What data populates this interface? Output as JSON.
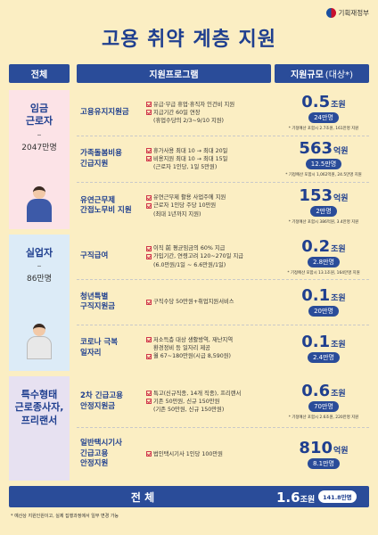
{
  "ministry": "기획재정부",
  "title": "고용 취약 계층 지원",
  "headers": {
    "category": "전체",
    "program": "지원프로그램",
    "scale": "지원규모",
    "scale_sub": "(대상*)"
  },
  "groups": [
    {
      "name_lines": [
        "임금",
        "근로자"
      ],
      "dash": "–",
      "count": "2047만명",
      "rows": [
        {
          "name_lines": [
            "고용유지지원금"
          ],
          "bullets": [
            {
              "check": true,
              "text": "유급·무급 휴업·휴직자 인건비 지원"
            },
            {
              "check": true,
              "text": "지급기간 60일 연장"
            },
            {
              "check": false,
              "text": "(휴업수당의 2/3~9/10 지원)"
            }
          ],
          "amount": "0.5",
          "unit": "조원",
          "target": "24만명",
          "note": "* 기정예산 포함시 2.7조원, 161만명 지원"
        },
        {
          "name_lines": [
            "가족돌봄비용",
            "긴급지원"
          ],
          "bullets": [
            {
              "check": true,
              "text": "휴가사용 최대 10 → 최대 20일"
            },
            {
              "check": true,
              "text": "비용지원 최대 10 → 최대 15일"
            },
            {
              "check": false,
              "text": "(근로자 1인당, 1일 5만원)"
            }
          ],
          "amount": "563",
          "unit": "억원",
          "target": "12.5만명",
          "note": "* 기정예산 포함시 1,062억원, 24.5만명 지원"
        },
        {
          "name_lines": [
            "유연근무제",
            "간접노무비 지원"
          ],
          "bullets": [
            {
              "check": true,
              "text": "유연근무제 활용 사업주에 지원"
            },
            {
              "check": true,
              "text": "근로자 1인당 주당 10만원"
            },
            {
              "check": false,
              "text": "(최대 1년까지 지원)"
            }
          ],
          "amount": "153",
          "unit": "억원",
          "target": "2만명",
          "note": "* 기정예산 포함시 386억원, 3.4만명 지원"
        }
      ]
    },
    {
      "name_lines": [
        "실업자"
      ],
      "dash": "–",
      "count": "86만명",
      "rows": [
        {
          "name_lines": [
            "구직급여"
          ],
          "bullets": [
            {
              "check": true,
              "text": "이직 前 평균임금의 60% 지급"
            },
            {
              "check": true,
              "text": "가입기간, 연령고려 120~270일 지급"
            },
            {
              "check": false,
              "text": "(6.0만원/1일 ~ 6.6만원/1일)"
            }
          ],
          "amount": "0.2",
          "unit": "조원",
          "target": "2.8만명",
          "note": "* 기정예산 포함시 13.1조원, 164만명 지원"
        },
        {
          "name_lines": [
            "청년특별",
            "구직지원금"
          ],
          "bullets": [
            {
              "check": true,
              "text": "구직수당 50만원+취업지원서비스"
            }
          ],
          "amount": "0.1",
          "unit": "조원",
          "target": "20만명",
          "note": ""
        },
        {
          "name_lines": [
            "코로나 극복",
            "일자리"
          ],
          "bullets": [
            {
              "check": true,
              "text": "저소득층 대상 생활방역, 재난지역"
            },
            {
              "check": false,
              "text": "환경정비 등 일자리 제공"
            },
            {
              "check": true,
              "text": "월 67~180만원(시급 8,590원)"
            }
          ],
          "amount": "0.1",
          "unit": "조원",
          "target": "2.4만명",
          "note": ""
        }
      ]
    },
    {
      "name_lines": [
        "특수형태",
        "근로종사자,",
        "프리랜서"
      ],
      "dash": "",
      "count": "",
      "rows": [
        {
          "name_lines": [
            "2차 긴급고용",
            "안정지원금"
          ],
          "bullets": [
            {
              "check": true,
              "text": "특고(신규직종, 14개 직종), 프리랜서"
            },
            {
              "check": true,
              "text": "기존 50만원, 신규 150만원"
            },
            {
              "check": false,
              "text": "(기존 50만원, 신규 150만원)"
            }
          ],
          "amount": "0.6",
          "unit": "조원",
          "target": "70만명",
          "note": "* 기정예산 포함시 2.6조원, 220만명 지원"
        },
        {
          "name_lines": [
            "일반택시기사",
            "긴급고용",
            "안정지원"
          ],
          "bullets": [
            {
              "check": true,
              "text": "법인택시기사 1인당 100만원"
            }
          ],
          "amount": "810",
          "unit": "억원",
          "target": "8.1만명",
          "note": ""
        }
      ]
    }
  ],
  "total": {
    "label": "전 체",
    "amount": "1.6",
    "unit": "조원",
    "target": "141.8만명"
  },
  "footnote": "* 예산상 지원인원이고, 실제 집행과정에서 일부 변경 가능"
}
